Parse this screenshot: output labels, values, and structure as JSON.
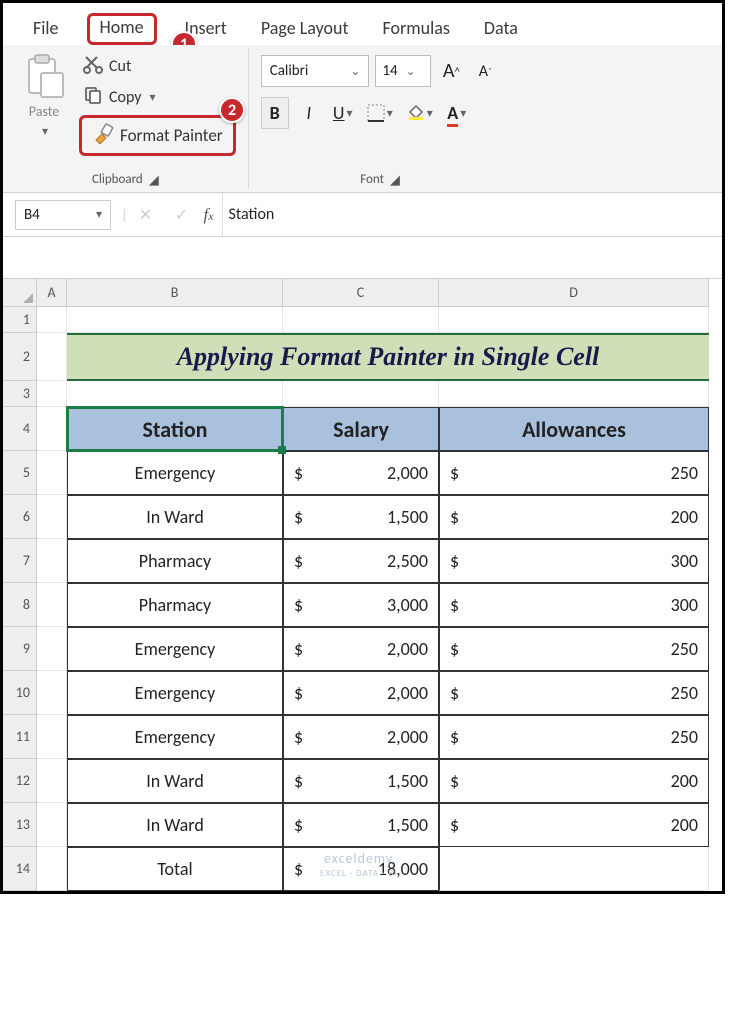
{
  "tabs": [
    "File",
    "Home",
    "Insert",
    "Page Layout",
    "Formulas",
    "Data"
  ],
  "tabs_active_index": 1,
  "clipboard": {
    "paste_label": "Paste",
    "cut_label": "Cut",
    "copy_label": "Copy",
    "format_painter_label": "Format Painter",
    "group_label": "Clipboard"
  },
  "font": {
    "name": "Calibri",
    "size": "14",
    "group_label": "Font"
  },
  "steps": {
    "s1": "1",
    "s2": "2"
  },
  "namebox": "B4",
  "fx_value": "Station",
  "columns": {
    "A": "A",
    "B": "B",
    "C": "C",
    "D": "D"
  },
  "rows": [
    "1",
    "2",
    "3",
    "4",
    "5",
    "6",
    "7",
    "8",
    "9",
    "10",
    "11",
    "12",
    "13",
    "14"
  ],
  "title": "Applying Format Painter in Single Cell",
  "headers": {
    "station": "Station",
    "salary": "Salary",
    "allow": "Allowances"
  },
  "data_rows": [
    {
      "station": "Emergency",
      "salary": "2,000",
      "allow": "250"
    },
    {
      "station": "In Ward",
      "salary": "1,500",
      "allow": "200"
    },
    {
      "station": "Pharmacy",
      "salary": "2,500",
      "allow": "300"
    },
    {
      "station": "Pharmacy",
      "salary": "3,000",
      "allow": "300"
    },
    {
      "station": "Emergency",
      "salary": "2,000",
      "allow": "250"
    },
    {
      "station": "Emergency",
      "salary": "2,000",
      "allow": "250"
    },
    {
      "station": "Emergency",
      "salary": "2,000",
      "allow": "250"
    },
    {
      "station": "In Ward",
      "salary": "1,500",
      "allow": "200"
    },
    {
      "station": "In Ward",
      "salary": "1,500",
      "allow": "200"
    }
  ],
  "total": {
    "label": "Total",
    "salary": "18,000"
  },
  "currency": "$",
  "watermark": "exceldemy",
  "watermark2": "EXCEL · DATA · BI",
  "colors": {
    "hi": "#c6282d",
    "banner_bg": "#cfe0b8",
    "banner_border": "#246b3c",
    "th_bg": "#a9c1dd",
    "sel": "#1a7f46"
  }
}
